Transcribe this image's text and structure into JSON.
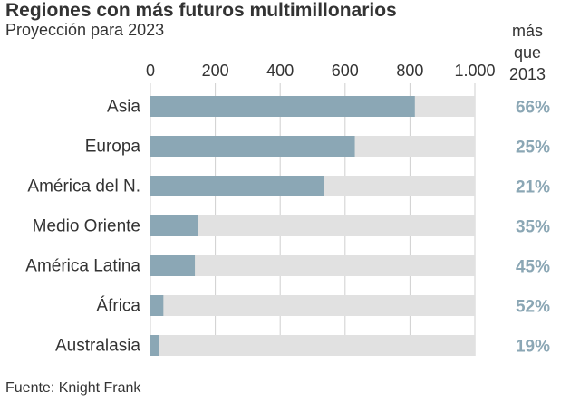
{
  "title": "Regiones con más futuros multimillonarios",
  "subtitle": "Proyección para 2023",
  "right_header": [
    "más",
    "que",
    "2013"
  ],
  "source": "Fuente: Knight Frank",
  "colors": {
    "bar": "#8ba7b5",
    "track": "#e1e1e1",
    "pct": "#8ba7b5",
    "text": "#333333",
    "grid": "#cfcfcf"
  },
  "chart_data": {
    "type": "bar",
    "orientation": "horizontal",
    "categories": [
      "Asia",
      "Europa",
      "América del N.",
      "Medio Oriente",
      "América Latina",
      "África",
      "Australasia"
    ],
    "values": [
      815,
      630,
      535,
      148,
      137,
      40,
      27
    ],
    "pct_more_than_2013": [
      "66%",
      "25%",
      "21%",
      "35%",
      "45%",
      "52%",
      "19%"
    ],
    "xlim": [
      0,
      1000
    ],
    "xticks": [
      0,
      200,
      400,
      600,
      800,
      1000
    ],
    "xtick_labels": [
      "0",
      "200",
      "400",
      "600",
      "800",
      "1.000"
    ],
    "grid": true,
    "title": "Regiones con más futuros multimillonarios",
    "subtitle": "Proyección para 2023"
  }
}
